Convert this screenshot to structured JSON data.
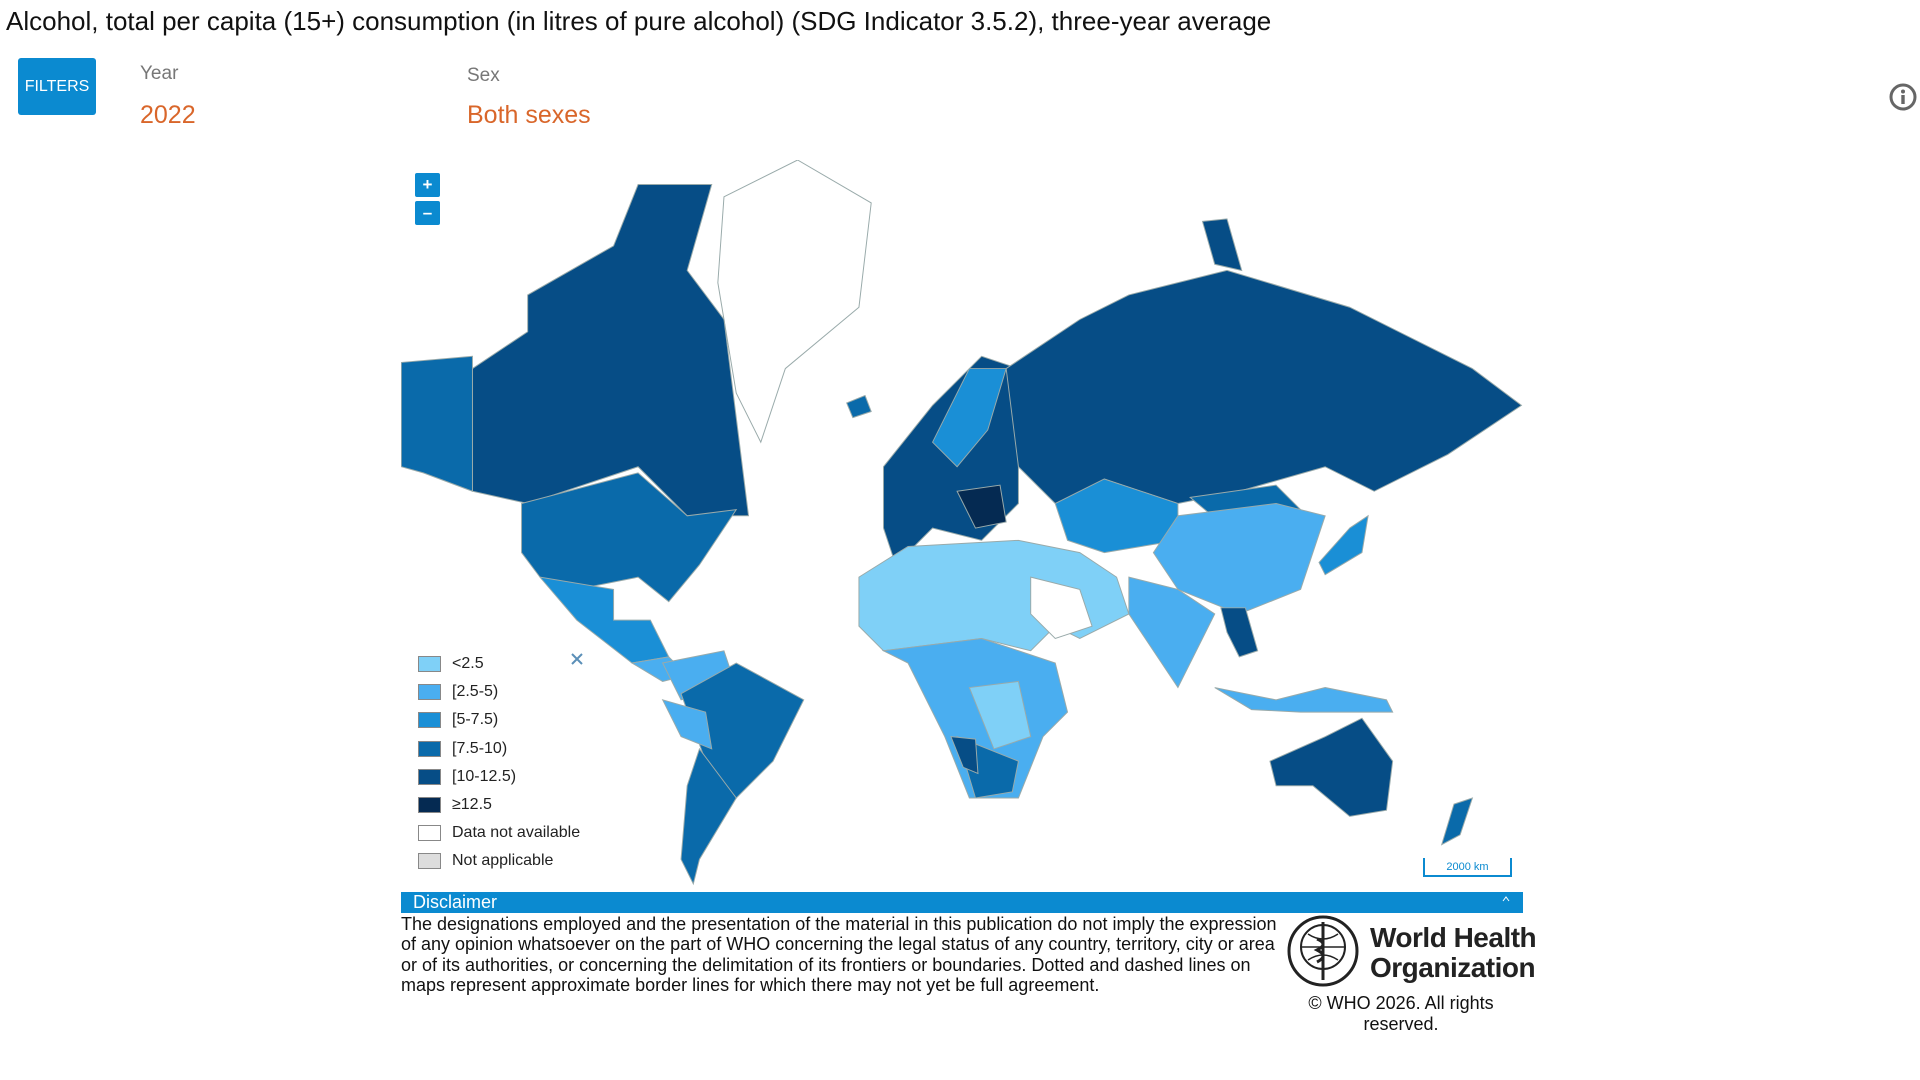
{
  "header": {
    "title": "Alcohol, total per capita (15+) consumption (in litres of pure alcohol) (SDG Indicator 3.5.2), three-year average"
  },
  "filters": {
    "button": "FILTERS",
    "year": {
      "label": "Year",
      "value": "2022"
    },
    "sex": {
      "label": "Sex",
      "value": "Both sexes"
    }
  },
  "map": {
    "zoom_in": "+",
    "zoom_out": "–",
    "scale": "2000 km",
    "legend": [
      {
        "label": "<2.5",
        "color": "#7fd0f7"
      },
      {
        "label": "[2.5-5)",
        "color": "#4aaef0"
      },
      {
        "label": "[5-7.5)",
        "color": "#1a8fd6"
      },
      {
        "label": "[7.5-10)",
        "color": "#0a6aaa"
      },
      {
        "label": "[10-12.5)",
        "color": "#064d86"
      },
      {
        "label": "≥12.5",
        "color": "#052a52"
      },
      {
        "label": "Data not available",
        "color": "#ffffff"
      },
      {
        "label": "Not applicable",
        "color": "#dddddd"
      }
    ]
  },
  "disclaimer": {
    "title": "Disclaimer",
    "text": "The designations employed and the presentation of the material in this publication do not imply the expression of any opinion whatsoever on the part of WHO concerning the legal status of any country, territory, city or area or of its authorities, or concerning the delimitation of its frontiers or boundaries. Dotted and dashed lines on maps represent approximate border lines for which there may not yet be full agreement."
  },
  "footer": {
    "logo_line1": "World Health",
    "logo_line2": "Organization",
    "copyright": "© WHO 2026. All rights reserved."
  }
}
